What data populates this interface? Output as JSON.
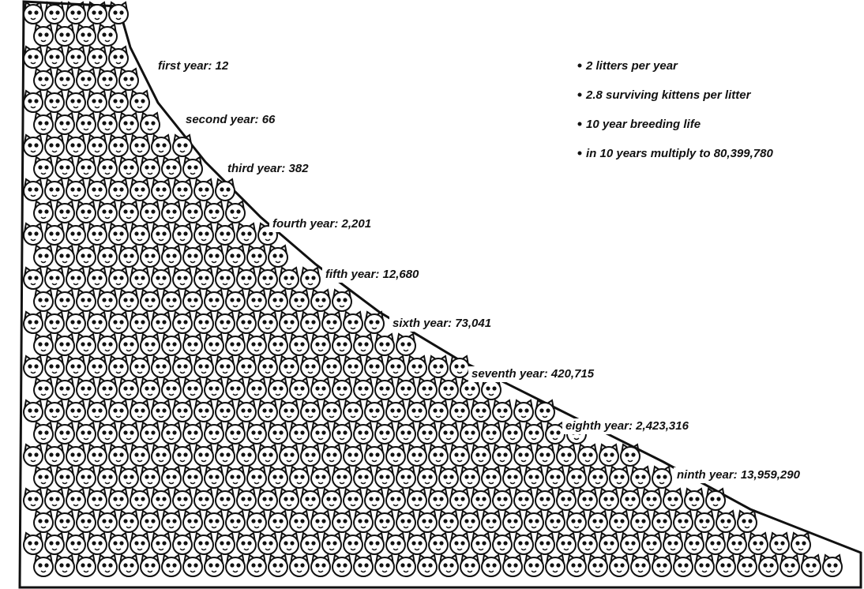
{
  "labels": [
    "first year: 12",
    "second year: 66",
    "third year: 382",
    "fourth year: 2,201",
    "fifth year: 12,680",
    "sixth year: 73,041",
    "seventh year: 420,715",
    "eighth year: 2,423,316",
    "ninth year: 13,959,290"
  ],
  "notes": [
    "2 litters per year",
    "2.8 surviving kittens per litter",
    "10 year breeding life",
    "in 10 years multiply to 80,399,780"
  ]
}
